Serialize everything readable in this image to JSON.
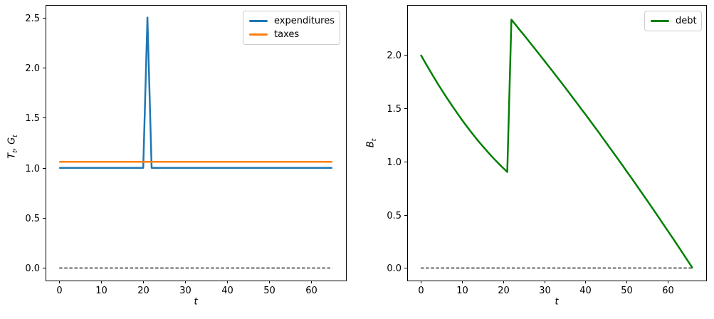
{
  "figure": {
    "background": "#ffffff",
    "axes_frame_color": "#000000",
    "zero_line_color": "#000000"
  },
  "chart_data": [
    {
      "type": "line",
      "panel": "left",
      "title": "",
      "xlabel": "t",
      "ylabel": "T_t, G_t",
      "xlim": [
        -3.25,
        68.25
      ],
      "ylim": [
        -0.125,
        2.625
      ],
      "xticks": [
        0,
        10,
        20,
        30,
        40,
        50,
        60
      ],
      "xtick_labels": [
        "0",
        "10",
        "20",
        "30",
        "40",
        "50",
        "60"
      ],
      "yticks": [
        0,
        0.5,
        1,
        1.5,
        2,
        2.5
      ],
      "ytick_labels": [
        "0.0",
        "0.5",
        "1.0",
        "1.5",
        "2.0",
        "2.5"
      ],
      "grid": false,
      "legend_position": "upper right",
      "series": [
        {
          "name": "zero-line",
          "color": "#000000",
          "line_width": 1.3,
          "dash": "4.5 2.6",
          "in_legend": false,
          "points": [
            [
              0,
              0
            ],
            [
              65,
              0
            ]
          ]
        },
        {
          "name": "expenditures",
          "color": "#1f77b4",
          "line_width": 2.5,
          "dash": null,
          "in_legend": true,
          "points": [
            [
              0,
              1.0
            ],
            [
              20,
              1.0
            ],
            [
              21,
              2.5
            ],
            [
              22,
              1.0
            ],
            [
              65,
              1.0
            ]
          ]
        },
        {
          "name": "taxes",
          "color": "#ff7f0e",
          "line_width": 2.5,
          "dash": null,
          "in_legend": true,
          "points": [
            [
              0,
              1.06
            ],
            [
              65,
              1.06
            ]
          ]
        }
      ]
    },
    {
      "type": "line",
      "panel": "right",
      "title": "",
      "xlabel": "t",
      "ylabel": "B_t",
      "xlim": [
        -3.3,
        69.3
      ],
      "ylim": [
        -0.1175,
        2.4675
      ],
      "xticks": [
        0,
        10,
        20,
        30,
        40,
        50,
        60
      ],
      "xtick_labels": [
        "0",
        "10",
        "20",
        "30",
        "40",
        "50",
        "60"
      ],
      "yticks": [
        0,
        0.5,
        1,
        1.5,
        2
      ],
      "ytick_labels": [
        "0.0",
        "0.5",
        "1.0",
        "1.5",
        "2.0"
      ],
      "grid": false,
      "legend_position": "upper right",
      "series": [
        {
          "name": "zero-line",
          "color": "#000000",
          "line_width": 1.3,
          "dash": "4.5 2.6",
          "in_legend": false,
          "points": [
            [
              0,
              0
            ],
            [
              66,
              0
            ]
          ]
        },
        {
          "name": "debt",
          "color": "#008000",
          "line_width": 2.5,
          "dash": null,
          "in_legend": true,
          "points": [
            [
              0,
              2.0
            ],
            [
              1,
              1.932
            ],
            [
              2,
              1.866
            ],
            [
              3,
              1.801
            ],
            [
              4,
              1.737
            ],
            [
              5,
              1.676
            ],
            [
              6,
              1.615
            ],
            [
              7,
              1.557
            ],
            [
              8,
              1.5
            ],
            [
              9,
              1.444
            ],
            [
              10,
              1.39
            ],
            [
              11,
              1.338
            ],
            [
              12,
              1.287
            ],
            [
              13,
              1.238
            ],
            [
              14,
              1.19
            ],
            [
              15,
              1.144
            ],
            [
              16,
              1.1
            ],
            [
              17,
              1.057
            ],
            [
              18,
              1.016
            ],
            [
              19,
              0.976
            ],
            [
              20,
              0.938
            ],
            [
              21,
              0.901
            ],
            [
              22,
              2.33
            ],
            [
              23,
              2.283
            ],
            [
              24,
              2.235
            ],
            [
              25,
              2.188
            ],
            [
              26,
              2.14
            ],
            [
              27,
              2.091
            ],
            [
              28,
              2.043
            ],
            [
              29,
              1.994
            ],
            [
              30,
              1.945
            ],
            [
              31,
              1.896
            ],
            [
              32,
              1.846
            ],
            [
              33,
              1.796
            ],
            [
              34,
              1.746
            ],
            [
              35,
              1.696
            ],
            [
              36,
              1.645
            ],
            [
              37,
              1.594
            ],
            [
              38,
              1.543
            ],
            [
              39,
              1.491
            ],
            [
              40,
              1.44
            ],
            [
              41,
              1.388
            ],
            [
              42,
              1.335
            ],
            [
              43,
              1.283
            ],
            [
              44,
              1.23
            ],
            [
              45,
              1.177
            ],
            [
              46,
              1.123
            ],
            [
              47,
              1.07
            ],
            [
              48,
              1.016
            ],
            [
              49,
              0.962
            ],
            [
              50,
              0.907
            ],
            [
              51,
              0.853
            ],
            [
              52,
              0.798
            ],
            [
              53,
              0.742
            ],
            [
              54,
              0.687
            ],
            [
              55,
              0.631
            ],
            [
              56,
              0.575
            ],
            [
              57,
              0.519
            ],
            [
              58,
              0.462
            ],
            [
              59,
              0.405
            ],
            [
              60,
              0.348
            ],
            [
              61,
              0.291
            ],
            [
              62,
              0.233
            ],
            [
              63,
              0.175
            ],
            [
              64,
              0.117
            ],
            [
              65,
              0.058
            ],
            [
              66,
              0.0
            ]
          ]
        }
      ]
    }
  ]
}
